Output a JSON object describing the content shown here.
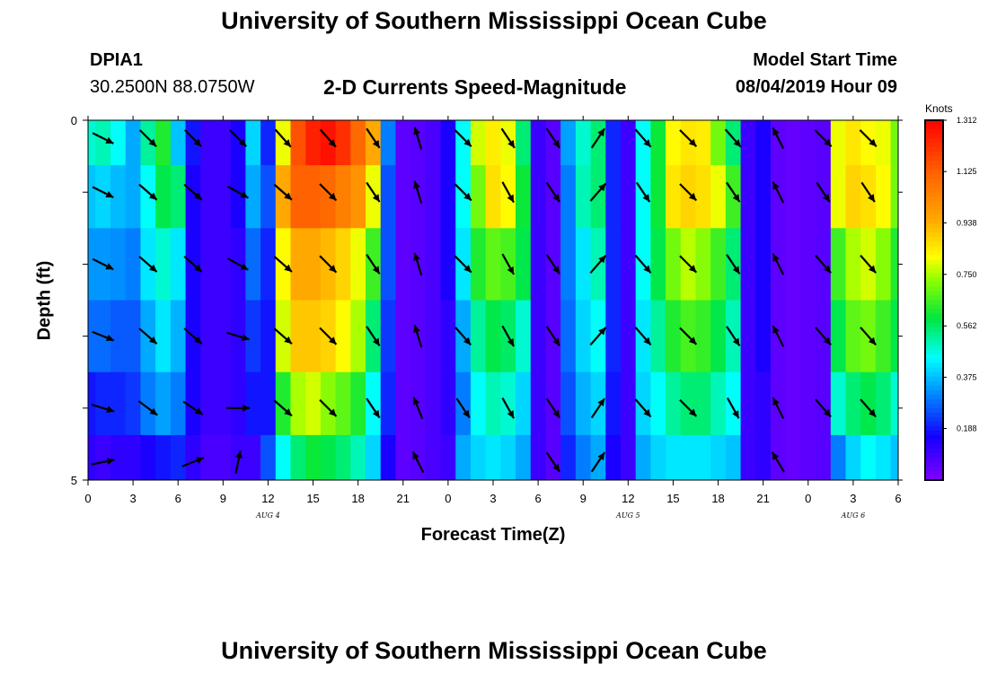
{
  "page": {
    "title_top": "University of Southern Mississippi Ocean Cube",
    "title_bottom": "University of Southern Mississippi Ocean Cube",
    "station_id": "DPIA1",
    "station_coords": "30.2500N 88.0750W",
    "plot_title": "2-D Currents Speed-Magnitude",
    "model_start_label": "Model Start Time",
    "model_start_value": "08/04/2019 Hour 09"
  },
  "chart_data": {
    "type": "heatmap",
    "title": "2-D Currents Speed-Magnitude",
    "xlabel": "Forecast Time(Z)",
    "ylabel": "Depth (ft)",
    "ylim": [
      0,
      5
    ],
    "y_tick_labels": [
      "0",
      "5"
    ],
    "x_tick_labels": [
      "0",
      "3",
      "6",
      "9",
      "12",
      "15",
      "18",
      "21",
      "0",
      "3",
      "6",
      "9",
      "12",
      "15",
      "18",
      "21",
      "0",
      "3",
      "6"
    ],
    "date_labels": [
      {
        "label": "AUG 4",
        "hour": 12
      },
      {
        "label": "AUG 5",
        "hour": 36
      },
      {
        "label": "AUG 6",
        "hour": 51
      }
    ],
    "colorbar": {
      "units": "Knots",
      "min": 0,
      "max": 1.312,
      "tick_labels": [
        "1.312",
        "1.125",
        "0.938",
        "0.750",
        "0.562",
        "0.375",
        "0.188"
      ],
      "tick_values": [
        1.312,
        1.125,
        0.938,
        0.75,
        0.562,
        0.375,
        0.188
      ]
    },
    "x_hours": [
      0,
      1,
      2,
      3,
      4,
      5,
      6,
      7,
      8,
      9,
      10,
      11,
      12,
      13,
      14,
      15,
      16,
      17,
      18,
      19,
      20,
      21,
      22,
      23,
      24,
      25,
      26,
      27,
      28,
      29,
      30,
      31,
      32,
      33,
      34,
      35,
      36,
      37,
      38,
      39,
      40,
      41,
      42,
      43,
      44,
      45,
      46,
      47,
      48,
      49,
      50,
      51,
      52,
      53,
      54
    ],
    "depth_levels": [
      0.25,
      1.0,
      2.0,
      3.0,
      4.0,
      4.75
    ],
    "speed_by_level": [
      [
        0.48,
        0.5,
        0.45,
        0.35,
        0.52,
        0.62,
        0.38,
        0.18,
        0.1,
        0.1,
        0.15,
        0.4,
        0.2,
        0.8,
        1.15,
        1.25,
        1.28,
        1.22,
        1.1,
        0.95,
        0.3,
        0.05,
        0.06,
        0.08,
        0.15,
        0.45,
        0.78,
        0.84,
        0.8,
        0.55,
        0.1,
        0.06,
        0.34,
        0.48,
        0.55,
        0.2,
        0.1,
        0.45,
        0.6,
        0.82,
        0.85,
        0.84,
        0.7,
        0.55,
        0.1,
        0.15,
        0.05,
        0.04,
        0.05,
        0.06,
        0.8,
        0.85,
        0.82,
        0.8,
        0.7
      ],
      [
        0.38,
        0.4,
        0.37,
        0.35,
        0.45,
        0.58,
        0.55,
        0.15,
        0.1,
        0.1,
        0.15,
        0.35,
        0.25,
        0.95,
        1.12,
        1.12,
        1.1,
        1.05,
        1.0,
        0.8,
        0.25,
        0.05,
        0.06,
        0.08,
        0.15,
        0.45,
        0.7,
        0.86,
        0.82,
        0.6,
        0.1,
        0.06,
        0.3,
        0.5,
        0.55,
        0.2,
        0.1,
        0.45,
        0.6,
        0.85,
        0.88,
        0.86,
        0.8,
        0.65,
        0.1,
        0.15,
        0.05,
        0.04,
        0.05,
        0.06,
        0.8,
        0.88,
        0.86,
        0.82,
        0.7
      ],
      [
        0.33,
        0.33,
        0.32,
        0.3,
        0.42,
        0.48,
        0.42,
        0.15,
        0.1,
        0.1,
        0.12,
        0.28,
        0.2,
        0.82,
        0.95,
        0.95,
        0.92,
        0.88,
        0.8,
        0.65,
        0.25,
        0.05,
        0.06,
        0.08,
        0.15,
        0.42,
        0.62,
        0.68,
        0.66,
        0.58,
        0.1,
        0.06,
        0.3,
        0.42,
        0.5,
        0.2,
        0.1,
        0.45,
        0.58,
        0.7,
        0.76,
        0.72,
        0.65,
        0.55,
        0.1,
        0.15,
        0.05,
        0.04,
        0.05,
        0.06,
        0.65,
        0.75,
        0.78,
        0.72,
        0.62
      ],
      [
        0.28,
        0.28,
        0.26,
        0.26,
        0.35,
        0.42,
        0.36,
        0.15,
        0.1,
        0.1,
        0.12,
        0.22,
        0.18,
        0.78,
        0.9,
        0.9,
        0.88,
        0.82,
        0.75,
        0.55,
        0.22,
        0.05,
        0.06,
        0.08,
        0.12,
        0.35,
        0.52,
        0.58,
        0.56,
        0.48,
        0.1,
        0.06,
        0.28,
        0.4,
        0.45,
        0.2,
        0.1,
        0.42,
        0.52,
        0.62,
        0.66,
        0.64,
        0.58,
        0.5,
        0.1,
        0.15,
        0.05,
        0.04,
        0.05,
        0.06,
        0.58,
        0.68,
        0.7,
        0.65,
        0.58
      ],
      [
        0.18,
        0.2,
        0.2,
        0.22,
        0.3,
        0.34,
        0.3,
        0.15,
        0.1,
        0.1,
        0.12,
        0.18,
        0.18,
        0.62,
        0.75,
        0.78,
        0.72,
        0.68,
        0.62,
        0.45,
        0.2,
        0.05,
        0.06,
        0.08,
        0.12,
        0.3,
        0.45,
        0.5,
        0.48,
        0.4,
        0.1,
        0.06,
        0.25,
        0.36,
        0.4,
        0.18,
        0.1,
        0.4,
        0.45,
        0.52,
        0.55,
        0.55,
        0.5,
        0.45,
        0.1,
        0.12,
        0.05,
        0.04,
        0.05,
        0.06,
        0.48,
        0.55,
        0.58,
        0.55,
        0.48
      ],
      [
        0.12,
        0.1,
        0.12,
        0.12,
        0.15,
        0.18,
        0.2,
        0.12,
        0.08,
        0.08,
        0.1,
        0.1,
        0.25,
        0.45,
        0.55,
        0.6,
        0.58,
        0.55,
        0.5,
        0.4,
        0.15,
        0.05,
        0.06,
        0.08,
        0.1,
        0.35,
        0.4,
        0.42,
        0.4,
        0.35,
        0.1,
        0.06,
        0.2,
        0.3,
        0.35,
        0.15,
        0.1,
        0.35,
        0.4,
        0.42,
        0.42,
        0.42,
        0.4,
        0.38,
        0.1,
        0.12,
        0.05,
        0.04,
        0.05,
        0.06,
        0.3,
        0.4,
        0.45,
        0.42,
        0.38
      ]
    ],
    "arrow_hours": [
      1,
      4,
      7,
      10,
      13,
      16,
      19,
      22,
      25,
      28,
      31,
      34,
      37,
      40,
      43,
      46,
      49,
      52
    ],
    "arrow_rows": [
      [
        [
          1.0,
          -0.5
        ],
        [
          0.8,
          -0.8
        ],
        [
          0.8,
          -0.8
        ],
        [
          0.8,
          -0.8
        ],
        [
          0.8,
          -0.9
        ],
        [
          0.8,
          -0.9
        ],
        [
          0.6,
          -0.9
        ],
        [
          -0.3,
          1.0
        ],
        [
          0.8,
          -0.8
        ],
        [
          0.6,
          -0.9
        ],
        [
          0.6,
          -0.9
        ],
        [
          0.6,
          0.9
        ],
        [
          0.7,
          -0.8
        ],
        [
          0.8,
          -0.8
        ],
        [
          0.7,
          -0.8
        ],
        [
          -0.5,
          1.0
        ],
        [
          0.8,
          -0.8
        ],
        [
          0.8,
          -0.8
        ]
      ],
      [
        [
          1.0,
          -0.5
        ],
        [
          0.8,
          -0.7
        ],
        [
          0.8,
          -0.7
        ],
        [
          0.9,
          -0.5
        ],
        [
          0.8,
          -0.7
        ],
        [
          0.8,
          -0.8
        ],
        [
          0.6,
          -0.9
        ],
        [
          -0.3,
          1.0
        ],
        [
          0.8,
          -0.8
        ],
        [
          0.5,
          -0.9
        ],
        [
          0.6,
          -0.9
        ],
        [
          0.7,
          0.8
        ],
        [
          0.6,
          -0.9
        ],
        [
          0.8,
          -0.8
        ],
        [
          0.6,
          -0.9
        ],
        [
          -0.5,
          1.0
        ],
        [
          0.6,
          -0.9
        ],
        [
          0.6,
          -0.9
        ]
      ],
      [
        [
          1.0,
          -0.5
        ],
        [
          0.8,
          -0.7
        ],
        [
          0.8,
          -0.7
        ],
        [
          0.9,
          -0.5
        ],
        [
          0.8,
          -0.7
        ],
        [
          0.8,
          -0.8
        ],
        [
          0.6,
          -0.9
        ],
        [
          -0.3,
          1.0
        ],
        [
          0.8,
          -0.8
        ],
        [
          0.5,
          -0.9
        ],
        [
          0.6,
          -0.9
        ],
        [
          0.7,
          0.8
        ],
        [
          0.7,
          -0.8
        ],
        [
          0.8,
          -0.8
        ],
        [
          0.6,
          -0.9
        ],
        [
          -0.5,
          1.0
        ],
        [
          0.7,
          -0.8
        ],
        [
          0.7,
          -0.8
        ]
      ],
      [
        [
          1.0,
          -0.4
        ],
        [
          0.8,
          -0.7
        ],
        [
          0.8,
          -0.7
        ],
        [
          1.0,
          -0.3
        ],
        [
          0.8,
          -0.7
        ],
        [
          0.8,
          -0.8
        ],
        [
          0.6,
          -0.9
        ],
        [
          -0.3,
          1.0
        ],
        [
          0.7,
          -0.8
        ],
        [
          0.5,
          -0.9
        ],
        [
          0.6,
          -0.9
        ],
        [
          0.7,
          0.8
        ],
        [
          0.7,
          -0.8
        ],
        [
          0.8,
          -0.8
        ],
        [
          0.6,
          -0.9
        ],
        [
          -0.5,
          1.0
        ],
        [
          0.7,
          -0.8
        ],
        [
          0.7,
          -0.8
        ]
      ],
      [
        [
          1.0,
          -0.3
        ],
        [
          0.8,
          -0.6
        ],
        [
          0.9,
          -0.6
        ],
        [
          1.0,
          0.0
        ],
        [
          0.8,
          -0.7
        ],
        [
          0.8,
          -0.8
        ],
        [
          0.6,
          -0.9
        ],
        [
          -0.4,
          1.0
        ],
        [
          0.6,
          -0.9
        ],
        [
          0.5,
          -0.9
        ],
        [
          0.6,
          -0.9
        ],
        [
          0.6,
          0.9
        ],
        [
          0.7,
          -0.8
        ],
        [
          0.8,
          -0.8
        ],
        [
          0.5,
          -0.9
        ],
        [
          -0.5,
          1.0
        ],
        [
          0.7,
          -0.8
        ],
        [
          0.7,
          -0.8
        ]
      ],
      [
        [
          1.0,
          0.2
        ],
        [
          null,
          null
        ],
        [
          1.0,
          0.4
        ],
        [
          0.2,
          1.0
        ],
        [
          null,
          null
        ],
        [
          null,
          null
        ],
        [
          null,
          null
        ],
        [
          -0.5,
          1.0
        ],
        [
          null,
          null
        ],
        [
          null,
          null
        ],
        [
          0.6,
          -0.9
        ],
        [
          0.6,
          0.9
        ],
        [
          null,
          null
        ],
        [
          null,
          null
        ],
        [
          null,
          null
        ],
        [
          -0.6,
          1.0
        ],
        [
          null,
          null
        ],
        [
          null,
          null
        ]
      ]
    ]
  }
}
